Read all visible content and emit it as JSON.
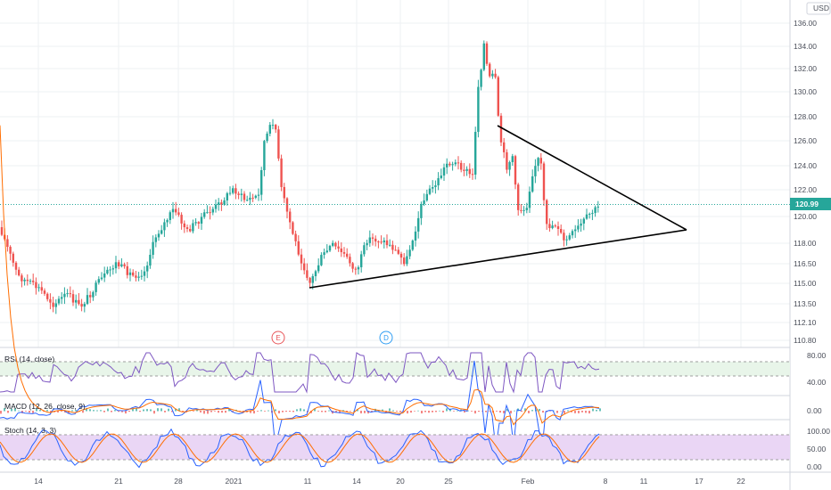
{
  "currency": "USD",
  "price_axis_labels": [
    "136.00",
    "134.00",
    "132.00",
    "130.00",
    "128.00",
    "126.00",
    "124.00",
    "122.00",
    "120.00",
    "118.00",
    "116.50",
    "115.00",
    "113.50",
    "112.10",
    "110.80"
  ],
  "last_price": "120.99",
  "time_axis_labels": [
    "14",
    "21",
    "28",
    "2021",
    "11",
    "14",
    "20",
    "25",
    "Feb",
    "8",
    "11",
    "17",
    "22"
  ],
  "events": [
    {
      "letter": "E",
      "color": "#e8575a"
    },
    {
      "letter": "D",
      "color": "#2f9df3"
    }
  ],
  "indicators": {
    "rsi": {
      "label": "RSI (14, close)",
      "levels": [
        "80.00",
        "40.00"
      ]
    },
    "macd": {
      "label": "MACD (12, 26, close, 9)",
      "levels": [
        "0.00"
      ]
    },
    "stoch": {
      "label": "Stoch (14, 3, 3)",
      "levels": [
        "100.00",
        "50.00",
        "0.00"
      ]
    }
  },
  "colors": {
    "up": "#26a69a",
    "down": "#ef5350",
    "rsi": "#7e57c2",
    "macd": "#2962ff",
    "signal": "#ff6d00",
    "stoch_k": "#2962ff",
    "stoch_d": "#ff6d00",
    "last_price_tag": "#26a69a"
  },
  "chart_data": {
    "type": "candlestick",
    "ylim": [
      110.8,
      136.0
    ],
    "trendlines": [
      {
        "from": [
          "Jan 11",
          114.6
        ],
        "to": [
          "Feb 15",
          119.0
        ]
      },
      {
        "from": [
          "Jan 29",
          127.2
        ],
        "to": [
          "Feb 15",
          119.0
        ]
      }
    ]
  }
}
